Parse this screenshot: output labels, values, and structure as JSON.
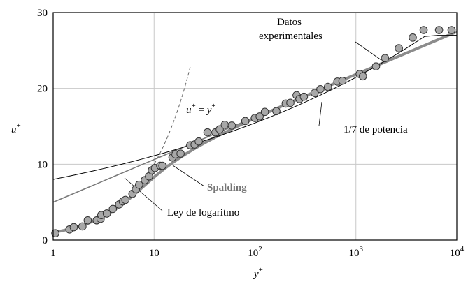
{
  "chart_data": {
    "type": "scatter",
    "xscale": "log",
    "xlim": [
      1,
      10000
    ],
    "ylim": [
      0,
      30
    ],
    "grid": true,
    "xlabel_base": "y",
    "xlabel_sup": "+",
    "ylabel_base": "u",
    "ylabel_sup": "+",
    "x_ticks": [
      {
        "value": 1,
        "label": "1",
        "sup": ""
      },
      {
        "value": 10,
        "label": "10",
        "sup": ""
      },
      {
        "value": 100,
        "label": "10",
        "sup": "2"
      },
      {
        "value": 1000,
        "label": "10",
        "sup": "3"
      },
      {
        "value": 10000,
        "label": "10",
        "sup": "4"
      }
    ],
    "y_ticks": [
      0,
      10,
      20,
      30
    ],
    "annotations": {
      "datos_line1": "Datos",
      "datos_line2": "experimentales",
      "linear_lhs_base": "u",
      "linear_lhs_sup": "+",
      "linear_eq": " = ",
      "linear_rhs_base": "y",
      "linear_rhs_sup": "+",
      "power": "1/7 de potencia",
      "spalding": "Spalding",
      "log_law": "Ley de logaritmo"
    },
    "series": [
      {
        "kind": "experimental",
        "x": [
          1.05,
          1.45,
          1.6,
          1.95,
          2.2,
          2.7,
          2.95,
          3.0,
          3.4,
          3.9,
          4.5,
          4.9,
          5.2,
          6.1,
          6.6,
          7.1,
          8.1,
          8.9,
          9.5,
          10.2,
          11.5,
          12.1,
          15.2,
          16.3,
          18.3,
          22.8,
          25.2,
          27.7,
          33.8,
          40.5,
          44.7,
          50.2,
          58.9,
          80.2,
          99.6,
          111.2,
          125.2,
          162.8,
          201.4,
          224.0,
          258.2,
          275.5,
          305.1,
          390.4,
          444.8,
          528.3,
          655.1,
          735.5,
          1089.1,
          1172.1,
          1581.5,
          1944.1,
          2663.7,
          3657.7,
          4689.2,
          6667.0,
          8871.8
        ],
        "y": [
          0.9,
          1.4,
          1.7,
          1.8,
          2.6,
          2.6,
          2.8,
          3.3,
          3.5,
          4.1,
          4.7,
          5.1,
          5.3,
          6.1,
          6.7,
          7.3,
          7.9,
          8.4,
          9.2,
          9.5,
          9.8,
          9.8,
          10.9,
          11.3,
          11.4,
          12.5,
          12.6,
          13.0,
          14.2,
          14.2,
          14.6,
          15.2,
          15.1,
          15.7,
          16.1,
          16.3,
          16.9,
          17.0,
          18.0,
          18.1,
          19.1,
          18.6,
          18.9,
          19.4,
          19.9,
          20.2,
          20.9,
          21.0,
          21.9,
          21.6,
          22.9,
          24.0,
          25.3,
          26.7,
          27.7,
          27.7,
          27.7
        ]
      }
    ]
  }
}
